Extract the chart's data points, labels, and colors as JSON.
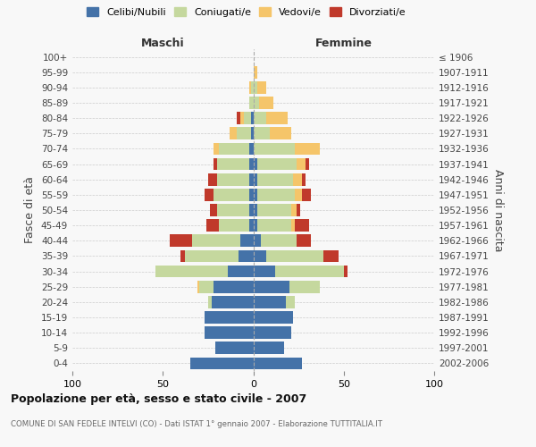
{
  "age_groups": [
    "0-4",
    "5-9",
    "10-14",
    "15-19",
    "20-24",
    "25-29",
    "30-34",
    "35-39",
    "40-44",
    "45-49",
    "50-54",
    "55-59",
    "60-64",
    "65-69",
    "70-74",
    "75-79",
    "80-84",
    "85-89",
    "90-94",
    "95-99",
    "100+"
  ],
  "birth_years": [
    "2002-2006",
    "1997-2001",
    "1992-1996",
    "1987-1991",
    "1982-1986",
    "1977-1981",
    "1972-1976",
    "1967-1971",
    "1962-1966",
    "1957-1961",
    "1952-1956",
    "1947-1951",
    "1942-1946",
    "1937-1941",
    "1932-1936",
    "1927-1931",
    "1922-1926",
    "1917-1921",
    "1912-1916",
    "1907-1911",
    "≤ 1906"
  ],
  "male_celibi": [
    35,
    21,
    27,
    27,
    23,
    22,
    14,
    8,
    7,
    2,
    2,
    2,
    2,
    2,
    2,
    1,
    1,
    0,
    0,
    0,
    0
  ],
  "male_coniugati": [
    0,
    0,
    0,
    0,
    2,
    8,
    40,
    30,
    27,
    17,
    18,
    20,
    18,
    18,
    17,
    8,
    4,
    2,
    1,
    0,
    0
  ],
  "male_vedovi": [
    0,
    0,
    0,
    0,
    0,
    1,
    0,
    0,
    0,
    0,
    0,
    0,
    0,
    0,
    3,
    4,
    2,
    0,
    1,
    0,
    0
  ],
  "male_divorziati": [
    0,
    0,
    0,
    0,
    0,
    0,
    0,
    2,
    12,
    7,
    4,
    5,
    5,
    2,
    0,
    0,
    2,
    0,
    0,
    0,
    0
  ],
  "female_nubili": [
    27,
    17,
    21,
    22,
    18,
    20,
    12,
    7,
    4,
    2,
    2,
    2,
    2,
    2,
    0,
    0,
    0,
    0,
    0,
    0,
    0
  ],
  "female_coniugate": [
    0,
    0,
    0,
    0,
    5,
    17,
    38,
    32,
    20,
    19,
    19,
    21,
    20,
    22,
    23,
    9,
    7,
    3,
    2,
    0,
    0
  ],
  "female_vedove": [
    0,
    0,
    0,
    0,
    0,
    0,
    0,
    0,
    0,
    2,
    3,
    4,
    5,
    5,
    14,
    12,
    12,
    8,
    5,
    2,
    0
  ],
  "female_divorziate": [
    0,
    0,
    0,
    0,
    0,
    0,
    2,
    8,
    8,
    8,
    2,
    5,
    2,
    2,
    0,
    0,
    0,
    0,
    0,
    0,
    0
  ],
  "colors_celibi": "#4472a8",
  "colors_coniugati": "#c5d89e",
  "colors_vedovi": "#f5c56a",
  "colors_divorziati": "#c0392b",
  "xlim": 100,
  "title": "Popolazione per età, sesso e stato civile - 2007",
  "subtitle": "COMUNE DI SAN FEDELE INTELVI (CO) - Dati ISTAT 1° gennaio 2007 - Elaborazione TUTTITALIA.IT",
  "ylabel_left": "Fasce di età",
  "ylabel_right": "Anni di nascita",
  "label_maschi": "Maschi",
  "label_femmine": "Femmine",
  "legend_labels": [
    "Celibi/Nubili",
    "Coniugati/e",
    "Vedovi/e",
    "Divorziati/e"
  ],
  "bg_color": "#f8f8f8",
  "grid_color": "#cccccc"
}
